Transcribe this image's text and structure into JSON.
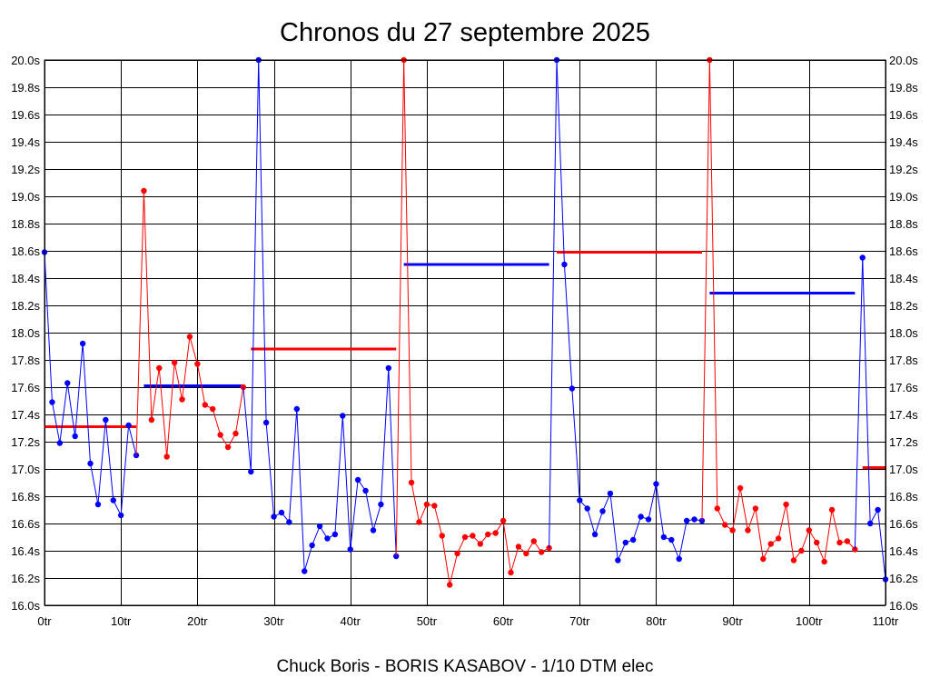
{
  "chart_data": {
    "type": "line",
    "title": "Chronos du 27 septembre 2025",
    "subtitle": "Chuck Boris - BORIS KASABOV - 1/10 DTM elec",
    "xlim": [
      0,
      110
    ],
    "ylim": [
      16.0,
      20.0
    ],
    "x_ticks": [
      0,
      10,
      20,
      30,
      40,
      50,
      60,
      70,
      80,
      90,
      100,
      110
    ],
    "x_tick_labels": [
      "0tr",
      "10tr",
      "20tr",
      "30tr",
      "40tr",
      "50tr",
      "60tr",
      "70tr",
      "80tr",
      "90tr",
      "100tr",
      "110tr"
    ],
    "y_ticks": [
      16.0,
      16.2,
      16.4,
      16.6,
      16.8,
      17.0,
      17.2,
      17.4,
      17.6,
      17.8,
      18.0,
      18.2,
      18.4,
      18.6,
      18.8,
      19.0,
      19.2,
      19.4,
      19.6,
      19.8,
      20.0
    ],
    "y_tick_labels": [
      "16.0s",
      "16.2s",
      "16.4s",
      "16.6s",
      "16.8s",
      "17.0s",
      "17.2s",
      "17.4s",
      "17.6s",
      "17.8s",
      "18.0s",
      "18.2s",
      "18.4s",
      "18.6s",
      "18.8s",
      "19.0s",
      "19.2s",
      "19.4s",
      "19.6s",
      "19.8s",
      "20.0s"
    ],
    "grid": true,
    "colors": {
      "blue": "#0000ff",
      "red": "#ff0000"
    },
    "series": [
      {
        "color": "blue",
        "x": [
          0,
          1,
          2,
          3,
          4,
          5,
          6,
          7,
          8,
          9,
          10,
          11,
          12
        ],
        "values": [
          18.59,
          17.49,
          17.19,
          17.63,
          17.24,
          17.92,
          17.04,
          16.74,
          17.36,
          16.77,
          16.66,
          17.32,
          17.1
        ]
      },
      {
        "color": "red",
        "x": [
          13,
          14,
          15,
          16,
          17,
          18,
          19,
          20,
          21,
          22,
          23,
          24,
          25,
          26
        ],
        "values": [
          19.04,
          17.36,
          17.74,
          17.09,
          17.78,
          17.51,
          17.97,
          17.77,
          17.47,
          17.44,
          17.25,
          17.16,
          17.26,
          17.6
        ]
      },
      {
        "color": "blue",
        "x": [
          27,
          28,
          29,
          30,
          31,
          32,
          33,
          34,
          35,
          36,
          37,
          38,
          39,
          40,
          41,
          42,
          43,
          44,
          45,
          46
        ],
        "values": [
          16.98,
          20.0,
          17.34,
          16.65,
          16.68,
          16.61,
          17.44,
          16.25,
          16.44,
          16.58,
          16.49,
          16.52,
          17.39,
          16.41,
          16.92,
          16.84,
          16.55,
          16.74,
          17.74,
          16.36
        ]
      },
      {
        "color": "red",
        "x": [
          47,
          48,
          49,
          50,
          51,
          52,
          53,
          54,
          55,
          56,
          57,
          58,
          59,
          60,
          61,
          62,
          63,
          64,
          65,
          66
        ],
        "values": [
          20.0,
          16.9,
          16.61,
          16.74,
          16.73,
          16.51,
          16.15,
          16.38,
          16.5,
          16.51,
          16.45,
          16.52,
          16.53,
          16.62,
          16.24,
          16.43,
          16.38,
          16.47,
          16.39,
          16.42
        ]
      },
      {
        "color": "blue",
        "x": [
          67,
          68,
          69,
          70,
          71,
          72,
          73,
          74,
          75,
          76,
          77,
          78,
          79,
          80,
          81,
          82,
          83,
          84,
          85,
          86
        ],
        "values": [
          20.0,
          18.5,
          17.59,
          16.77,
          16.71,
          16.52,
          16.69,
          16.82,
          16.33,
          16.46,
          16.48,
          16.65,
          16.63,
          16.89,
          16.5,
          16.48,
          16.34,
          16.62,
          16.63,
          16.62
        ]
      },
      {
        "color": "red",
        "x": [
          87,
          88,
          89,
          90,
          91,
          92,
          93,
          94,
          95,
          96,
          97,
          98,
          99,
          100,
          101,
          102,
          103,
          104,
          105,
          106
        ],
        "values": [
          20.0,
          16.71,
          16.59,
          16.55,
          16.86,
          16.55,
          16.71,
          16.34,
          16.45,
          16.49,
          16.74,
          16.33,
          16.4,
          16.55,
          16.46,
          16.32,
          16.7,
          16.46,
          16.47,
          16.41
        ]
      },
      {
        "color": "blue",
        "x": [
          107,
          108,
          109,
          110
        ],
        "values": [
          18.55,
          16.6,
          16.7,
          16.19
        ]
      }
    ],
    "averages": [
      {
        "color": "red",
        "x_start": 0,
        "x_end": 12,
        "value": 17.31
      },
      {
        "color": "blue",
        "x_start": 13,
        "x_end": 26,
        "value": 17.61
      },
      {
        "color": "red",
        "x_start": 27,
        "x_end": 46,
        "value": 17.88
      },
      {
        "color": "blue",
        "x_start": 47,
        "x_end": 66,
        "value": 18.5
      },
      {
        "color": "red",
        "x_start": 67,
        "x_end": 86,
        "value": 18.59
      },
      {
        "color": "blue",
        "x_start": 87,
        "x_end": 106,
        "value": 18.29
      },
      {
        "color": "red",
        "x_start": 107,
        "x_end": 110,
        "value": 17.01
      }
    ]
  }
}
